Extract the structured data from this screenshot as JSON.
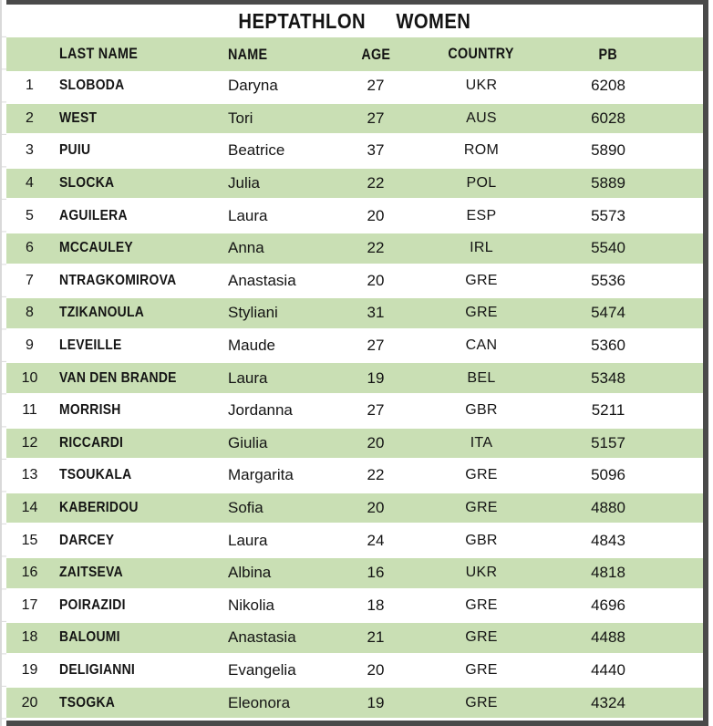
{
  "title": "HEPTATHLON  WOMEN",
  "header": {
    "rank": "",
    "last_name": "LAST NAME",
    "name": "NAME",
    "age": "AGE",
    "country": "COUNTRY",
    "pb": "PB"
  },
  "rows": [
    {
      "rank": "1",
      "last_name": "SLOBODA",
      "name": "Daryna",
      "age": "27",
      "country": "UKR",
      "pb": "6208"
    },
    {
      "rank": "2",
      "last_name": "WEST",
      "name": "Tori",
      "age": "27",
      "country": "AUS",
      "pb": "6028"
    },
    {
      "rank": "3",
      "last_name": "PUIU",
      "name": "Beatrice",
      "age": "37",
      "country": "ROM",
      "pb": "5890"
    },
    {
      "rank": "4",
      "last_name": "SLOCKA",
      "name": "Julia",
      "age": "22",
      "country": "POL",
      "pb": "5889"
    },
    {
      "rank": "5",
      "last_name": "AGUILERA",
      "name": "Laura",
      "age": "20",
      "country": "ESP",
      "pb": "5573"
    },
    {
      "rank": "6",
      "last_name": "MCCAULEY",
      "name": "Anna",
      "age": "22",
      "country": "IRL",
      "pb": "5540"
    },
    {
      "rank": "7",
      "last_name": "NTRAGKOMIROVA",
      "name": "Anastasia",
      "age": "20",
      "country": "GRE",
      "pb": "5536"
    },
    {
      "rank": "8",
      "last_name": "TZIKANOULA",
      "name": "Styliani",
      "age": "31",
      "country": "GRE",
      "pb": "5474"
    },
    {
      "rank": "9",
      "last_name": "LEVEILLE",
      "name": "Maude",
      "age": "27",
      "country": "CAN",
      "pb": "5360"
    },
    {
      "rank": "10",
      "last_name": "VAN DEN BRANDE",
      "name": "Laura",
      "age": "19",
      "country": "BEL",
      "pb": "5348"
    },
    {
      "rank": "11",
      "last_name": "MORRISH",
      "name": "Jordanna",
      "age": "27",
      "country": "GBR",
      "pb": "5211"
    },
    {
      "rank": "12",
      "last_name": "RICCARDI",
      "name": "Giulia",
      "age": "20",
      "country": "ITA",
      "pb": "5157"
    },
    {
      "rank": "13",
      "last_name": "TSOUKALA",
      "name": "Margarita",
      "age": "22",
      "country": "GRE",
      "pb": "5096"
    },
    {
      "rank": "14",
      "last_name": "KABERIDOU",
      "name": "Sofia",
      "age": "20",
      "country": "GRE",
      "pb": "4880"
    },
    {
      "rank": "15",
      "last_name": "DARCEY",
      "name": "Laura",
      "age": "24",
      "country": "GBR",
      "pb": "4843"
    },
    {
      "rank": "16",
      "last_name": "ZAITSEVA",
      "name": "Albina",
      "age": "16",
      "country": "UKR",
      "pb": "4818"
    },
    {
      "rank": "17",
      "last_name": "POIRAZIDI",
      "name": "Nikolia",
      "age": "18",
      "country": "GRE",
      "pb": "4696"
    },
    {
      "rank": "18",
      "last_name": "BALOUMI",
      "name": "Anastasia",
      "age": "21",
      "country": "GRE",
      "pb": "4488"
    },
    {
      "rank": "19",
      "last_name": "DELIGIANNI",
      "name": "Evangelia",
      "age": "20",
      "country": "GRE",
      "pb": "4440"
    },
    {
      "rank": "20",
      "last_name": "TSOGKA",
      "name": "Eleonora",
      "age": "19",
      "country": "GRE",
      "pb": "4324"
    }
  ],
  "colors": {
    "row_green": "#c9dfb4",
    "border_dark": "#4a4a4a",
    "grid_gray": "#d9d9d9",
    "text": "#141414"
  }
}
